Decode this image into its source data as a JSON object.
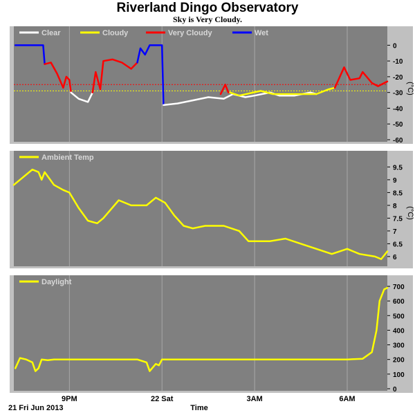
{
  "title": "Riverland Dingo Observatory",
  "subtitle": "Sky is Very Cloudy.",
  "x_axis": {
    "date_label": "21 Fri Jun 2013",
    "label": "Time",
    "ticks": [
      {
        "label": "9PM",
        "hour": 3
      },
      {
        "label": "22 Sat",
        "hour": 6
      },
      {
        "label": "3AM",
        "hour": 9
      },
      {
        "label": "6AM",
        "hour": 12
      }
    ],
    "range_hours": [
      1.2,
      13.3
    ]
  },
  "colors": {
    "background": "#ffffff",
    "plot_bg": "#808080",
    "frame": "#c0c0c0",
    "clear": "#ffffff",
    "cloudy": "#ffff00",
    "very_cloudy": "#ff0000",
    "wet": "#0000ff",
    "line": "#ffff00"
  },
  "chart_data": [
    {
      "type": "line",
      "name": "sky",
      "legend": [
        "Clear",
        "Cloudy",
        "Very Cloudy",
        "Wet"
      ],
      "unit": "(°C)",
      "ylim": [
        -60,
        5
      ],
      "yticks": [
        0,
        -10,
        -20,
        -30,
        -40,
        -50,
        -60
      ],
      "thresholds": [
        {
          "value": -25,
          "color": "#ff0000",
          "style": "dotted"
        },
        {
          "value": -29,
          "color": "#ffff00",
          "style": "dotted"
        }
      ],
      "segments": [
        {
          "condition": "wet",
          "color": "#0000ff",
          "points": [
            [
              1.25,
              0
            ],
            [
              2.15,
              0
            ],
            [
              2.2,
              -12
            ]
          ]
        },
        {
          "condition": "very_cloudy",
          "color": "#ff0000",
          "points": [
            [
              2.2,
              -12
            ],
            [
              2.4,
              -11
            ],
            [
              2.6,
              -18
            ],
            [
              2.8,
              -27
            ],
            [
              2.9,
              -20
            ],
            [
              3.0,
              -22
            ],
            [
              3.05,
              -30
            ]
          ]
        },
        {
          "condition": "clear",
          "color": "#ffffff",
          "points": [
            [
              3.05,
              -30
            ],
            [
              3.3,
              -34
            ],
            [
              3.6,
              -36
            ],
            [
              3.75,
              -30
            ]
          ]
        },
        {
          "condition": "very_cloudy",
          "color": "#ff0000",
          "points": [
            [
              3.75,
              -30
            ],
            [
              3.85,
              -17
            ],
            [
              4.0,
              -28
            ],
            [
              4.1,
              -10
            ],
            [
              4.4,
              -9
            ],
            [
              4.7,
              -11
            ],
            [
              5.0,
              -15
            ],
            [
              5.2,
              -11
            ]
          ]
        },
        {
          "condition": "wet",
          "color": "#0000ff",
          "points": [
            [
              5.2,
              -11
            ],
            [
              5.3,
              -2
            ],
            [
              5.45,
              -6
            ],
            [
              5.6,
              0
            ],
            [
              6.0,
              0
            ],
            [
              6.05,
              -38
            ]
          ]
        },
        {
          "condition": "clear",
          "color": "#ffffff",
          "points": [
            [
              6.05,
              -38
            ],
            [
              6.5,
              -37
            ],
            [
              7.0,
              -35
            ],
            [
              7.5,
              -33
            ],
            [
              8.0,
              -34
            ],
            [
              8.3,
              -31
            ],
            [
              8.7,
              -33
            ],
            [
              9.0,
              -32
            ],
            [
              9.5,
              -30
            ],
            [
              9.8,
              -32
            ],
            [
              10.3,
              -32
            ],
            [
              10.8,
              -30
            ],
            [
              11.0,
              -31
            ]
          ]
        },
        {
          "condition": "cloudy",
          "color": "#ffff00",
          "points": [
            [
              8.2,
              -30
            ],
            [
              8.5,
              -32
            ],
            [
              9.2,
              -29
            ],
            [
              9.6,
              -31
            ],
            [
              11.0,
              -31
            ],
            [
              11.4,
              -28
            ],
            [
              11.6,
              -27
            ]
          ]
        },
        {
          "condition": "very_cloudy",
          "color": "#ff0000",
          "points": [
            [
              11.6,
              -27
            ],
            [
              11.9,
              -14
            ],
            [
              12.1,
              -22
            ],
            [
              12.4,
              -21
            ],
            [
              12.5,
              -17
            ],
            [
              12.8,
              -24
            ],
            [
              13.0,
              -26
            ],
            [
              13.3,
              -23
            ]
          ]
        },
        {
          "condition": "very_cloudy",
          "color": "#ff0000",
          "points": [
            [
              7.9,
              -31
            ],
            [
              8.05,
              -25
            ],
            [
              8.15,
              -30
            ]
          ]
        }
      ]
    },
    {
      "type": "line",
      "name": "ambient",
      "legend": [
        "Ambient Temp"
      ],
      "unit": "(°C)",
      "ylim": [
        5.7,
        9.7
      ],
      "yticks": [
        9.5,
        9.0,
        8.5,
        8.0,
        7.5,
        7.0,
        6.5,
        6.0
      ],
      "series": [
        {
          "name": "Ambient Temp",
          "color": "#ffff00",
          "points": [
            [
              1.2,
              8.8
            ],
            [
              1.5,
              9.1
            ],
            [
              1.8,
              9.4
            ],
            [
              2.0,
              9.3
            ],
            [
              2.1,
              9.0
            ],
            [
              2.2,
              9.3
            ],
            [
              2.5,
              8.8
            ],
            [
              2.8,
              8.6
            ],
            [
              3.0,
              8.5
            ],
            [
              3.3,
              7.9
            ],
            [
              3.6,
              7.4
            ],
            [
              3.9,
              7.3
            ],
            [
              4.1,
              7.5
            ],
            [
              4.6,
              8.2
            ],
            [
              5.0,
              8.0
            ],
            [
              5.5,
              8.0
            ],
            [
              5.8,
              8.3
            ],
            [
              6.1,
              8.1
            ],
            [
              6.4,
              7.6
            ],
            [
              6.7,
              7.2
            ],
            [
              7.0,
              7.1
            ],
            [
              7.4,
              7.2
            ],
            [
              8.0,
              7.2
            ],
            [
              8.5,
              7.0
            ],
            [
              8.8,
              6.6
            ],
            [
              9.5,
              6.6
            ],
            [
              10.0,
              6.7
            ],
            [
              10.5,
              6.5
            ],
            [
              11.0,
              6.3
            ],
            [
              11.5,
              6.1
            ],
            [
              12.0,
              6.3
            ],
            [
              12.4,
              6.1
            ],
            [
              12.9,
              6.0
            ],
            [
              13.1,
              5.9
            ],
            [
              13.3,
              6.2
            ]
          ]
        }
      ]
    },
    {
      "type": "line",
      "name": "daylight",
      "legend": [
        "Daylight"
      ],
      "unit": "",
      "ylim": [
        0,
        700
      ],
      "yticks": [
        700,
        600,
        500,
        400,
        300,
        200,
        100,
        0
      ],
      "series": [
        {
          "name": "Daylight",
          "color": "#ffff00",
          "points": [
            [
              1.25,
              140
            ],
            [
              1.4,
              210
            ],
            [
              1.6,
              200
            ],
            [
              1.8,
              180
            ],
            [
              1.9,
              120
            ],
            [
              2.0,
              140
            ],
            [
              2.1,
              200
            ],
            [
              2.3,
              195
            ],
            [
              2.5,
              200
            ],
            [
              3.5,
              200
            ],
            [
              4.5,
              200
            ],
            [
              5.2,
              200
            ],
            [
              5.5,
              180
            ],
            [
              5.6,
              120
            ],
            [
              5.8,
              170
            ],
            [
              5.9,
              160
            ],
            [
              6.0,
              200
            ],
            [
              7.0,
              200
            ],
            [
              8.0,
              200
            ],
            [
              9.0,
              200
            ],
            [
              10.0,
              200
            ],
            [
              11.0,
              200
            ],
            [
              12.0,
              200
            ],
            [
              12.5,
              205
            ],
            [
              12.8,
              250
            ],
            [
              12.95,
              400
            ],
            [
              13.05,
              600
            ],
            [
              13.2,
              680
            ],
            [
              13.3,
              690
            ]
          ]
        }
      ]
    }
  ]
}
